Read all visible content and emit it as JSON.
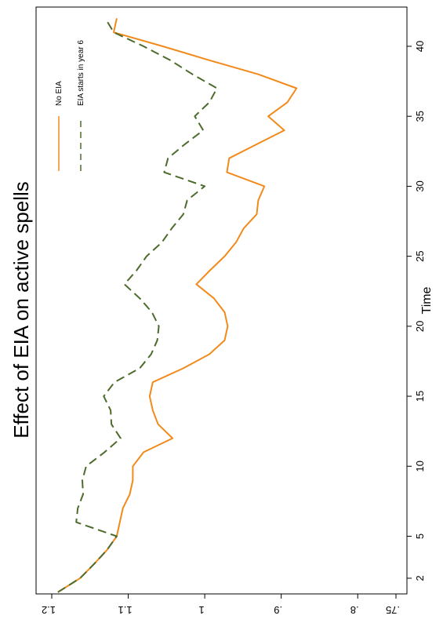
{
  "chart_data": {
    "type": "line",
    "title": "Effect of EIA on active spells",
    "xlabel": "Time",
    "ylabel": "",
    "x_ticks": [
      2,
      5,
      10,
      15,
      20,
      25,
      30,
      35,
      40
    ],
    "y_ticks": [
      ".75",
      ".8",
      ".9",
      "1",
      "1.1",
      "1.2"
    ],
    "y_tick_values": [
      0.75,
      0.8,
      0.9,
      1.0,
      1.1,
      1.2
    ],
    "xlim": [
      0.8,
      43.5
    ],
    "ylim": [
      0.74,
      1.22
    ],
    "orientation": "rotated-90",
    "legend_position": "top-right",
    "series": [
      {
        "name": "No EIA",
        "color": "#f28a1b",
        "dash": "solid",
        "x": [
          1,
          2,
          3,
          4,
          5,
          6,
          7,
          8,
          9,
          10,
          11,
          12,
          13,
          14,
          15,
          16,
          17,
          18,
          19,
          20,
          21,
          22,
          23,
          24,
          25,
          26,
          27,
          28,
          29,
          30,
          31,
          32,
          33,
          34,
          35,
          36,
          37,
          38,
          39,
          40,
          41,
          42
        ],
        "y": [
          1.192,
          1.163,
          1.145,
          1.128,
          1.115,
          1.111,
          1.107,
          1.098,
          1.094,
          1.094,
          1.08,
          1.042,
          1.061,
          1.068,
          1.072,
          1.068,
          1.028,
          0.994,
          0.974,
          0.97,
          0.974,
          0.988,
          1.011,
          0.993,
          0.974,
          0.959,
          0.949,
          0.932,
          0.93,
          0.922,
          0.971,
          0.968,
          0.932,
          0.896,
          0.917,
          0.892,
          0.88,
          0.93,
          0.994,
          1.055,
          1.119,
          1.115
        ]
      },
      {
        "name": "EIA starts in year 6",
        "color": "#4d6b2b",
        "dash": "dashed",
        "x": [
          1,
          2,
          3,
          4,
          5,
          6,
          7,
          8,
          9,
          10,
          11,
          12,
          13,
          14,
          15,
          16,
          17,
          18,
          19,
          20,
          21,
          22,
          23,
          24,
          25,
          26,
          27,
          28,
          29,
          30,
          31,
          32,
          33,
          34,
          35,
          36,
          37,
          38,
          39,
          40,
          41,
          42
        ],
        "y": [
          1.192,
          1.163,
          1.145,
          1.128,
          1.115,
          1.168,
          1.166,
          1.159,
          1.16,
          1.155,
          1.131,
          1.11,
          1.122,
          1.123,
          1.132,
          1.118,
          1.085,
          1.07,
          1.062,
          1.06,
          1.069,
          1.085,
          1.105,
          1.089,
          1.076,
          1.056,
          1.043,
          1.028,
          1.023,
          1.0,
          1.053,
          1.048,
          1.026,
          1.002,
          1.013,
          0.994,
          0.984,
          1.016,
          1.045,
          1.08,
          1.119,
          1.13
        ]
      }
    ]
  }
}
